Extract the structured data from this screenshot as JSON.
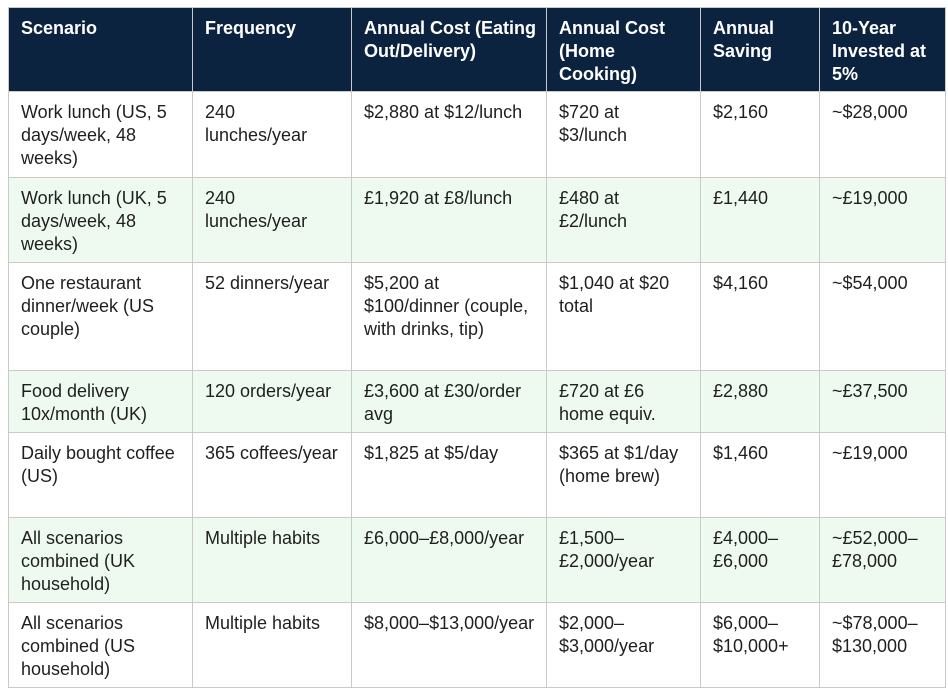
{
  "table": {
    "header": [
      "Scenario",
      "Frequency",
      "Annual Cost (Eating Out/Delivery)",
      "Annual Cost (Home Cooking)",
      "Annual Saving",
      "10-Year Invested at 5%"
    ],
    "rows": [
      [
        "Work lunch (US, 5 days/week, 48 weeks)",
        "240 lunches/year",
        "$2,880 at $12/lunch",
        "$720 at $3/lunch",
        "$2,160",
        "~$28,000"
      ],
      [
        "Work lunch (UK, 5 days/week, 48 weeks)",
        "240 lunches/year",
        "£1,920 at £8/lunch",
        "£480 at £2/lunch",
        "£1,440",
        "~£19,000"
      ],
      [
        "One restaurant dinner/week (US couple)",
        "52 dinners/year",
        "$5,200 at $100/dinner (couple, with drinks, tip)",
        "$1,040 at $20 total",
        "$4,160",
        "~$54,000"
      ],
      [
        "Food delivery 10x/month (UK)",
        "120 orders/year",
        "£3,600 at £30/order avg",
        "£720 at £6 home equiv.",
        "£2,880",
        "~£37,500"
      ],
      [
        "Daily bought coffee (US)",
        "365 coffees/year",
        "$1,825 at $5/day",
        "$365 at $1/day (home brew)",
        "$1,460",
        "~£19,000"
      ],
      [
        "All scenarios combined (UK household)",
        "Multiple habits",
        "£6,000–£8,000/year",
        "£1,500–£2,000/year",
        "£4,000–£6,000",
        "~£52,000–£78,000"
      ],
      [
        "All scenarios combined (US household)",
        "Multiple habits",
        "$8,000–$13,000/year",
        "$2,000–$3,000/year",
        "$6,000–$10,000+",
        "~$78,000–$130,000"
      ]
    ]
  }
}
